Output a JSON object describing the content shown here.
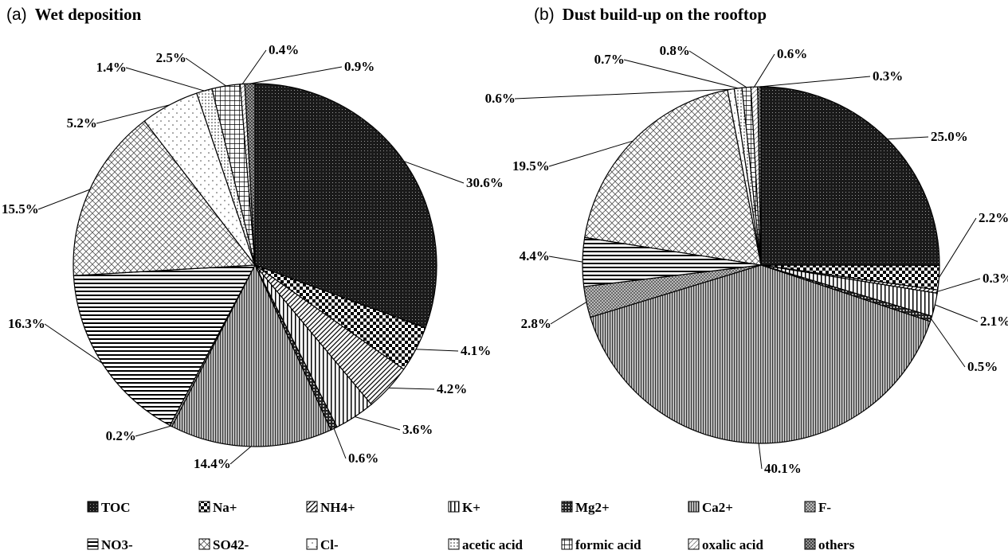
{
  "chart_data": [
    {
      "type": "pie",
      "panel": "(a)",
      "title": "Wet deposition",
      "slices": [
        {
          "name": "TOC",
          "value": 30.6,
          "label": "30.6%"
        },
        {
          "name": "Na+",
          "value": 4.1,
          "label": "4.1%"
        },
        {
          "name": "NH4+",
          "value": 4.2,
          "label": "4.2%"
        },
        {
          "name": "K+",
          "value": 3.6,
          "label": "3.6%"
        },
        {
          "name": "Mg2+",
          "value": 0.6,
          "label": "0.6%"
        },
        {
          "name": "Ca2+",
          "value": 14.4,
          "label": "14.4%"
        },
        {
          "name": "F-",
          "value": 0.2,
          "label": "0.2%"
        },
        {
          "name": "NO3-",
          "value": 16.3,
          "label": "16.3%"
        },
        {
          "name": "SO42-",
          "value": 15.5,
          "label": "15.5%"
        },
        {
          "name": "Cl-",
          "value": 5.2,
          "label": "5.2%"
        },
        {
          "name": "acetic acid",
          "value": 1.4,
          "label": "1.4%"
        },
        {
          "name": "formic acid",
          "value": 2.5,
          "label": "2.5%"
        },
        {
          "name": "oxalic acid",
          "value": 0.4,
          "label": "0.4%"
        },
        {
          "name": "others",
          "value": 0.9,
          "label": "0.9%"
        }
      ]
    },
    {
      "type": "pie",
      "panel": "(b)",
      "title": "Dust build-up on the rooftop",
      "slices": [
        {
          "name": "TOC",
          "value": 25.0,
          "label": "25.0%"
        },
        {
          "name": "Na+",
          "value": 2.2,
          "label": "2.2%"
        },
        {
          "name": "NH4+",
          "value": 0.3,
          "label": "0.3%"
        },
        {
          "name": "K+",
          "value": 2.1,
          "label": "2.1%"
        },
        {
          "name": "Mg2+",
          "value": 0.5,
          "label": "0.5%"
        },
        {
          "name": "Ca2+",
          "value": 40.1,
          "label": "40.1%"
        },
        {
          "name": "F-",
          "value": 2.8,
          "label": "2.8%"
        },
        {
          "name": "NO3-",
          "value": 4.4,
          "label": "4.4%"
        },
        {
          "name": "SO42-",
          "value": 19.5,
          "label": "19.5%"
        },
        {
          "name": "Cl-",
          "value": 0.6,
          "label": "0.6%"
        },
        {
          "name": "acetic acid",
          "value": 0.7,
          "label": "0.7%"
        },
        {
          "name": "formic acid",
          "value": 0.8,
          "label": "0.8%"
        },
        {
          "name": "oxalic acid",
          "value": 0.6,
          "label": "0.6%"
        },
        {
          "name": "others",
          "value": 0.3,
          "label": "0.3%"
        }
      ]
    }
  ],
  "legend": {
    "placement": "bottom",
    "entries": [
      {
        "name": "TOC",
        "pattern": "dense-dots"
      },
      {
        "name": "Na+",
        "pattern": "checker"
      },
      {
        "name": "NH4+",
        "pattern": "diagonal-hatch"
      },
      {
        "name": "K+",
        "pattern": "vertical-lines"
      },
      {
        "name": "Mg2+",
        "pattern": "dark-grid"
      },
      {
        "name": "Ca2+",
        "pattern": "dense-vertical"
      },
      {
        "name": "F-",
        "pattern": "fine-crosshatch"
      },
      {
        "name": "NO3-",
        "pattern": "horizontal-lines"
      },
      {
        "name": "SO42-",
        "pattern": "diamond-crosshatch"
      },
      {
        "name": "Cl-",
        "pattern": "sparse-dots"
      },
      {
        "name": "acetic acid",
        "pattern": "light-dots"
      },
      {
        "name": "formic acid",
        "pattern": "grid"
      },
      {
        "name": "oxalic acid",
        "pattern": "light-diagonal"
      },
      {
        "name": "others",
        "pattern": "cross-dots"
      }
    ]
  }
}
